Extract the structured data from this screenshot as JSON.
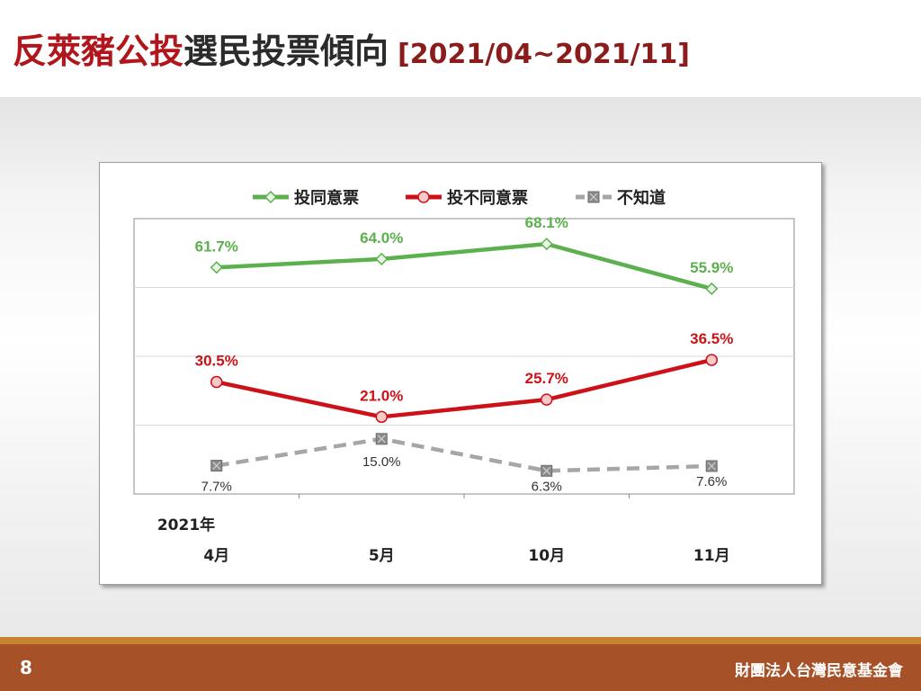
{
  "slide": {
    "title_part_red": "反萊豬公投",
    "title_part_dark": "選民投票傾向",
    "title_date": "[2021/04~2021/11]",
    "page_number": "8",
    "organization": "財團法人台灣民意基金會"
  },
  "colors": {
    "agree": "#5cb04e",
    "disagree": "#cc1218",
    "unknown": "#a6a6a6",
    "title_red": "#b0161b",
    "footer": "#a65128",
    "footer_accent": "#c8832e"
  },
  "chart_data": {
    "type": "line",
    "year_label": "2021年",
    "categories": [
      "4月",
      "5月",
      "10月",
      "11月"
    ],
    "series": [
      {
        "name": "投同意票",
        "values": [
          61.7,
          64.0,
          68.1,
          55.9
        ],
        "labels": [
          "61.7%",
          "64.0%",
          "68.1%",
          "55.9%"
        ],
        "color": "#5cb04e",
        "marker": "diamond",
        "style": "solid"
      },
      {
        "name": "投不同意票",
        "values": [
          30.5,
          21.0,
          25.7,
          36.5
        ],
        "labels": [
          "30.5%",
          "21.0%",
          "25.7%",
          "36.5%"
        ],
        "color": "#cc1218",
        "marker": "circle",
        "style": "solid"
      },
      {
        "name": "不知道",
        "values": [
          7.7,
          15.0,
          6.3,
          7.6
        ],
        "labels": [
          "7.7%",
          "15.0%",
          "6.3%",
          "7.6%"
        ],
        "color": "#a6a6a6",
        "marker": "square-x",
        "style": "dashed"
      }
    ],
    "legend_position": "top",
    "grid": "horizontal"
  }
}
